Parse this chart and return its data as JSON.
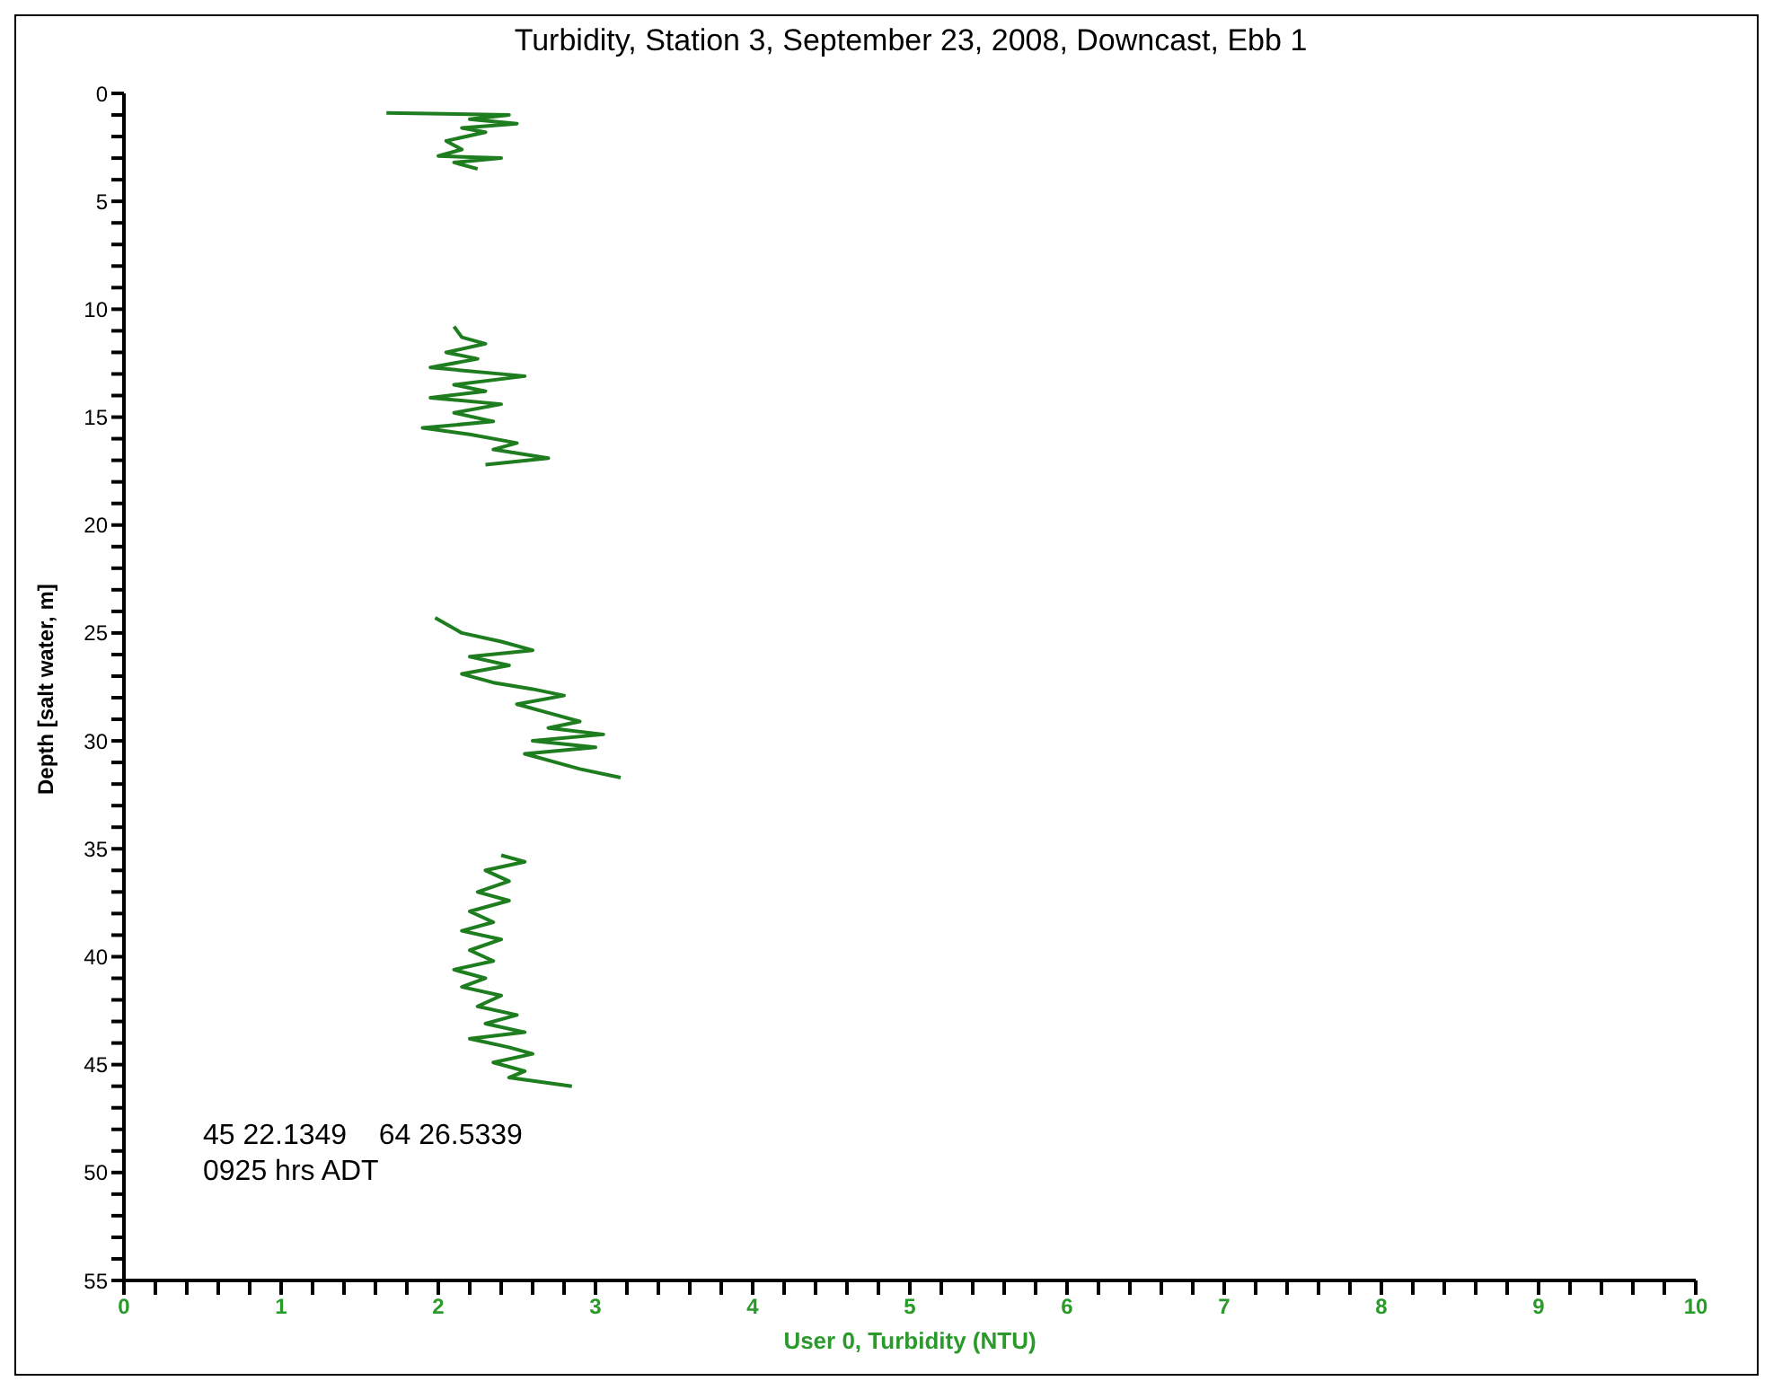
{
  "chart_data": {
    "type": "line",
    "title": "Turbidity, Station 3, September 23, 2008, Downcast, Ebb 1",
    "xlabel": "User 0, Turbidity (NTU)",
    "ylabel": "Depth [salt water, m]",
    "annotations": [
      "45 22.1349    64 26.5339",
      "0925 hrs ADT"
    ],
    "xlim": [
      0,
      10
    ],
    "ylim": [
      55,
      0
    ],
    "xticks": [
      0,
      {
        "value": 0.2,
        "label": null
      },
      {
        "value": 0.4,
        "label": null
      },
      {
        "value": 0.6,
        "label": null
      },
      {
        "value": 0.8,
        "label": null
      },
      1,
      {
        "value": 1.2,
        "label": null
      },
      {
        "value": 1.4,
        "label": null
      },
      {
        "value": 1.6,
        "label": null
      },
      {
        "value": 1.8,
        "label": null
      },
      2,
      {
        "value": 2.2,
        "label": null
      },
      {
        "value": 2.4,
        "label": null
      },
      {
        "value": 2.6,
        "label": null
      },
      {
        "value": 2.8,
        "label": null
      },
      3,
      {
        "value": 3.2,
        "label": null
      },
      {
        "value": 3.4,
        "label": null
      },
      {
        "value": 3.6,
        "label": null
      },
      {
        "value": 3.8,
        "label": null
      },
      4,
      {
        "value": 4.2,
        "label": null
      },
      {
        "value": 4.4,
        "label": null
      },
      {
        "value": 4.6,
        "label": null
      },
      {
        "value": 4.8,
        "label": null
      },
      5,
      {
        "value": 5.2,
        "label": null
      },
      {
        "value": 5.4,
        "label": null
      },
      {
        "value": 5.6,
        "label": null
      },
      {
        "value": 5.8,
        "label": null
      },
      6,
      {
        "value": 6.2,
        "label": null
      },
      {
        "value": 6.4,
        "label": null
      },
      {
        "value": 6.6,
        "label": null
      },
      {
        "value": 6.8,
        "label": null
      },
      7,
      {
        "value": 7.2,
        "label": null
      },
      {
        "value": 7.4,
        "label": null
      },
      {
        "value": 7.6,
        "label": null
      },
      {
        "value": 7.8,
        "label": null
      },
      8,
      {
        "value": 8.2,
        "label": null
      },
      {
        "value": 8.4,
        "label": null
      },
      {
        "value": 8.6,
        "label": null
      },
      {
        "value": 8.8,
        "label": null
      },
      9,
      {
        "value": 9.2,
        "label": null
      },
      {
        "value": 9.4,
        "label": null
      },
      {
        "value": 9.6,
        "label": null
      },
      {
        "value": 9.8,
        "label": null
      },
      10
    ],
    "yticks": [
      0,
      {
        "value": 1,
        "label": null
      },
      {
        "value": 2,
        "label": null
      },
      {
        "value": 3,
        "label": null
      },
      {
        "value": 4,
        "label": null
      },
      5,
      {
        "value": 6,
        "label": null
      },
      {
        "value": 7,
        "label": null
      },
      {
        "value": 8,
        "label": null
      },
      {
        "value": 9,
        "label": null
      },
      10,
      {
        "value": 11,
        "label": null
      },
      {
        "value": 12,
        "label": null
      },
      {
        "value": 13,
        "label": null
      },
      {
        "value": 14,
        "label": null
      },
      15,
      {
        "value": 16,
        "label": null
      },
      {
        "value": 17,
        "label": null
      },
      {
        "value": 18,
        "label": null
      },
      {
        "value": 19,
        "label": null
      },
      20,
      {
        "value": 21,
        "label": null
      },
      {
        "value": 22,
        "label": null
      },
      {
        "value": 23,
        "label": null
      },
      {
        "value": 24,
        "label": null
      },
      25,
      {
        "value": 26,
        "label": null
      },
      {
        "value": 27,
        "label": null
      },
      {
        "value": 28,
        "label": null
      },
      {
        "value": 29,
        "label": null
      },
      30,
      {
        "value": 31,
        "label": null
      },
      {
        "value": 32,
        "label": null
      },
      {
        "value": 33,
        "label": null
      },
      {
        "value": 34,
        "label": null
      },
      35,
      {
        "value": 36,
        "label": null
      },
      {
        "value": 37,
        "label": null
      },
      {
        "value": 38,
        "label": null
      },
      {
        "value": 39,
        "label": null
      },
      40,
      {
        "value": 41,
        "label": null
      },
      {
        "value": 42,
        "label": null
      },
      {
        "value": 43,
        "label": null
      },
      {
        "value": 44,
        "label": null
      },
      45,
      {
        "value": 46,
        "label": null
      },
      {
        "value": 47,
        "label": null
      },
      {
        "value": 48,
        "label": null
      },
      {
        "value": 49,
        "label": null
      },
      50,
      {
        "value": 51,
        "label": null
      },
      {
        "value": 52,
        "label": null
      },
      {
        "value": 53,
        "label": null
      },
      {
        "value": 54,
        "label": null
      },
      55
    ],
    "grid": false,
    "marker": "none",
    "line_style": "solid",
    "series": [
      {
        "color": "#1e7d1e",
        "x": [
          1.67,
          2.45,
          2.2,
          2.5,
          2.15,
          2.3,
          2.05,
          2.15,
          2.0,
          2.4,
          2.1,
          2.25
        ],
        "values": [
          0.9,
          1.0,
          1.2,
          1.4,
          1.6,
          1.8,
          2.2,
          2.6,
          2.9,
          3.0,
          3.2,
          3.5
        ]
      },
      {
        "color": "#1e7d1e",
        "x": [
          2.1,
          2.15,
          2.3,
          2.05,
          2.25,
          1.95,
          2.55,
          2.1,
          2.3,
          1.95,
          2.4,
          2.1,
          2.35,
          1.9,
          2.2,
          2.5,
          2.35,
          2.7,
          2.3
        ],
        "values": [
          10.8,
          11.3,
          11.6,
          12.0,
          12.3,
          12.7,
          13.1,
          13.5,
          13.8,
          14.1,
          14.4,
          14.8,
          15.2,
          15.5,
          15.8,
          16.2,
          16.5,
          16.9,
          17.2
        ]
      },
      {
        "color": "#1e7d1e",
        "x": [
          1.98,
          2.15,
          2.4,
          2.6,
          2.2,
          2.45,
          2.15,
          2.35,
          2.6,
          2.8,
          2.5,
          2.7,
          2.9,
          2.7,
          3.05,
          2.6,
          3.0,
          2.55,
          2.75,
          2.9,
          3.16
        ],
        "values": [
          24.3,
          25.0,
          25.4,
          25.8,
          26.1,
          26.5,
          26.9,
          27.3,
          27.6,
          27.9,
          28.3,
          28.7,
          29.1,
          29.4,
          29.7,
          30.0,
          30.3,
          30.6,
          31.0,
          31.3,
          31.7
        ]
      },
      {
        "color": "#1e7d1e",
        "x": [
          2.4,
          2.55,
          2.3,
          2.45,
          2.25,
          2.45,
          2.2,
          2.35,
          2.15,
          2.4,
          2.2,
          2.35,
          2.1,
          2.3,
          2.15,
          2.4,
          2.25,
          2.5,
          2.3,
          2.55,
          2.2,
          2.45,
          2.6,
          2.35,
          2.55,
          2.45,
          2.85
        ],
        "values": [
          35.3,
          35.6,
          36.0,
          36.5,
          37.0,
          37.4,
          37.9,
          38.4,
          38.8,
          39.2,
          39.7,
          40.2,
          40.6,
          41.0,
          41.4,
          41.8,
          42.3,
          42.7,
          43.1,
          43.5,
          43.8,
          44.2,
          44.5,
          44.9,
          45.3,
          45.6,
          46.0
        ]
      }
    ]
  }
}
